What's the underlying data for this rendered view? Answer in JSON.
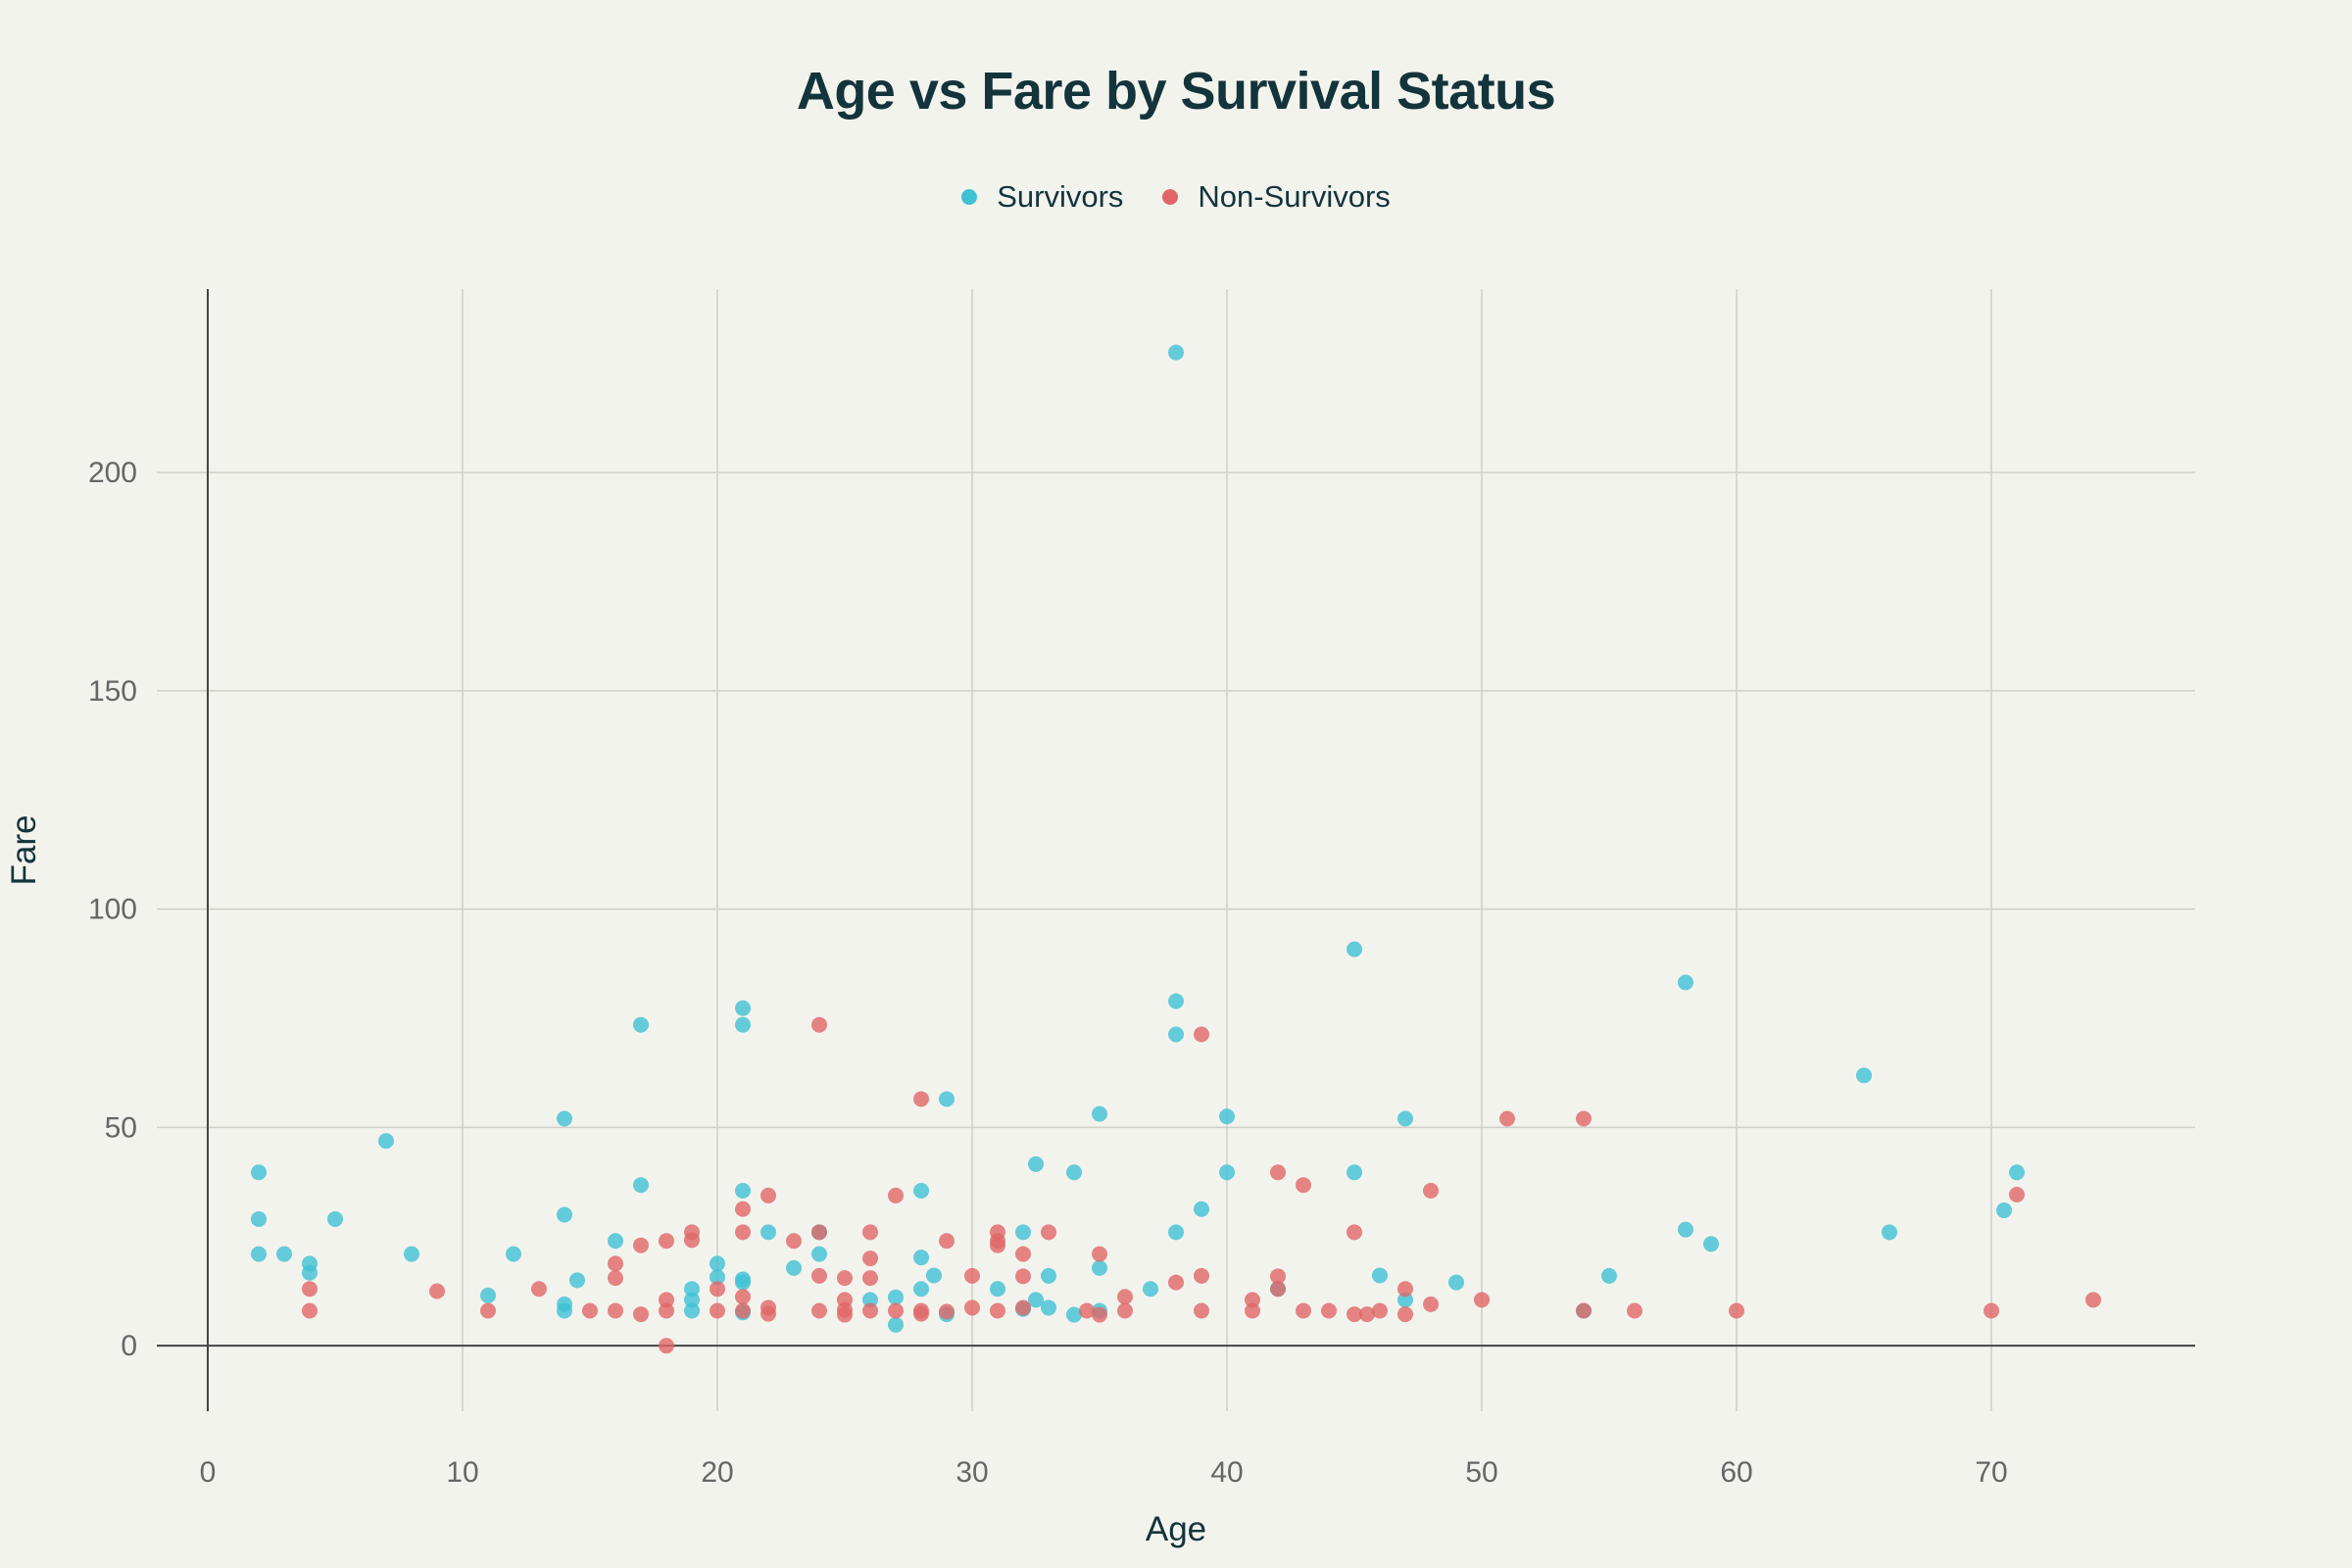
{
  "chart_data": {
    "type": "scatter",
    "title": "Age vs Fare by Survival Status",
    "xlabel": "Age",
    "ylabel": "Fare",
    "xlim": [
      -2,
      78
    ],
    "ylim": [
      -15,
      242
    ],
    "xticks": [
      0,
      10,
      20,
      30,
      40,
      50,
      60,
      70
    ],
    "yticks": [
      0,
      50,
      100,
      150,
      200
    ],
    "grid": true,
    "legend_position": "top-center",
    "series": [
      {
        "name": "Survivors",
        "color": "#3ec1d3",
        "points": [
          [
            2,
            39.7
          ],
          [
            2,
            29
          ],
          [
            2,
            21
          ],
          [
            3,
            21
          ],
          [
            4,
            18.8
          ],
          [
            4,
            16.7
          ],
          [
            5,
            29
          ],
          [
            7,
            46.9
          ],
          [
            8,
            21
          ],
          [
            11,
            11.5
          ],
          [
            12,
            21
          ],
          [
            14,
            52
          ],
          [
            14,
            30
          ],
          [
            14,
            9.5
          ],
          [
            14,
            8
          ],
          [
            14.5,
            15
          ],
          [
            16,
            24
          ],
          [
            17,
            73.5
          ],
          [
            17,
            36.8
          ],
          [
            19,
            13
          ],
          [
            19,
            10.5
          ],
          [
            19,
            8
          ],
          [
            20,
            18.8
          ],
          [
            20,
            15.7
          ],
          [
            21,
            77.3
          ],
          [
            21,
            73.5
          ],
          [
            21,
            35.5
          ],
          [
            21,
            15.2
          ],
          [
            21,
            14.5
          ],
          [
            21,
            7.6
          ],
          [
            22,
            26
          ],
          [
            23,
            17.8
          ],
          [
            24,
            21
          ],
          [
            24,
            26
          ],
          [
            26,
            10.5
          ],
          [
            27,
            11.1
          ],
          [
            27,
            4.8
          ],
          [
            28,
            35.5
          ],
          [
            28,
            20.2
          ],
          [
            28,
            13
          ],
          [
            28.5,
            16.1
          ],
          [
            29,
            56.5
          ],
          [
            29,
            7.2
          ],
          [
            31,
            13
          ],
          [
            32,
            26
          ],
          [
            32,
            8.4
          ],
          [
            32.5,
            41.6
          ],
          [
            32.5,
            10.5
          ],
          [
            33,
            16
          ],
          [
            33,
            8.7
          ],
          [
            34,
            39.7
          ],
          [
            34,
            7.1
          ],
          [
            35,
            53.1
          ],
          [
            35,
            17.8
          ],
          [
            35,
            8
          ],
          [
            37,
            13
          ],
          [
            38,
            227.5
          ],
          [
            38,
            78.9
          ],
          [
            38,
            71.3
          ],
          [
            38,
            26
          ],
          [
            39,
            31.3
          ],
          [
            40,
            52.5
          ],
          [
            40,
            39.7
          ],
          [
            42,
            13
          ],
          [
            45,
            90.8
          ],
          [
            45,
            39.7
          ],
          [
            46,
            16.1
          ],
          [
            47,
            52
          ],
          [
            47,
            10.5
          ],
          [
            49,
            14.5
          ],
          [
            54,
            8
          ],
          [
            55,
            16
          ],
          [
            58,
            83.2
          ],
          [
            58,
            26.6
          ],
          [
            59,
            23.3
          ],
          [
            65,
            61.9
          ],
          [
            66,
            26
          ],
          [
            70.5,
            31
          ],
          [
            71,
            39.7
          ]
        ]
      },
      {
        "name": "Non-Survivors",
        "color": "#e06666",
        "points": [
          [
            4,
            13
          ],
          [
            4,
            8
          ],
          [
            9,
            12.5
          ],
          [
            11,
            8
          ],
          [
            13,
            13
          ],
          [
            15,
            8
          ],
          [
            16,
            18.8
          ],
          [
            16,
            15.5
          ],
          [
            16,
            8
          ],
          [
            17,
            23
          ],
          [
            17,
            7.2
          ],
          [
            18,
            24
          ],
          [
            18,
            10.5
          ],
          [
            18,
            8
          ],
          [
            18,
            0
          ],
          [
            19,
            26
          ],
          [
            19,
            24.2
          ],
          [
            20,
            13
          ],
          [
            20,
            8
          ],
          [
            21,
            31.3
          ],
          [
            21,
            26
          ],
          [
            21,
            11.2
          ],
          [
            21,
            8
          ],
          [
            22,
            34.4
          ],
          [
            22,
            8.7
          ],
          [
            22,
            7.3
          ],
          [
            23,
            24
          ],
          [
            24,
            73.5
          ],
          [
            24,
            26
          ],
          [
            24,
            16
          ],
          [
            24,
            8
          ],
          [
            25,
            15.5
          ],
          [
            25,
            10.5
          ],
          [
            25,
            8.2
          ],
          [
            25,
            7.1
          ],
          [
            26,
            26
          ],
          [
            26,
            20
          ],
          [
            26,
            15.5
          ],
          [
            26,
            8
          ],
          [
            27,
            34.4
          ],
          [
            27,
            8
          ],
          [
            28,
            56.5
          ],
          [
            28,
            8
          ],
          [
            28,
            7.3
          ],
          [
            29,
            24
          ],
          [
            29,
            7.8
          ],
          [
            30,
            16
          ],
          [
            30,
            8.7
          ],
          [
            31,
            26
          ],
          [
            31,
            24
          ],
          [
            31,
            23
          ],
          [
            31,
            8
          ],
          [
            32,
            21
          ],
          [
            32,
            15.9
          ],
          [
            32,
            8.7
          ],
          [
            33,
            26
          ],
          [
            34.5,
            8
          ],
          [
            35,
            21
          ],
          [
            35,
            7.1
          ],
          [
            36,
            11.2
          ],
          [
            36,
            8
          ],
          [
            38,
            14.5
          ],
          [
            39,
            71.3
          ],
          [
            39,
            16
          ],
          [
            39,
            8
          ],
          [
            41,
            10.5
          ],
          [
            41,
            8
          ],
          [
            42,
            39.7
          ],
          [
            42,
            15.9
          ],
          [
            42,
            13
          ],
          [
            43,
            36.8
          ],
          [
            43,
            8
          ],
          [
            44,
            8
          ],
          [
            45,
            26
          ],
          [
            45,
            7.2
          ],
          [
            45.5,
            7.2
          ],
          [
            46,
            8
          ],
          [
            47,
            13
          ],
          [
            47,
            7.2
          ],
          [
            48,
            35.5
          ],
          [
            48,
            9.5
          ],
          [
            50,
            10.5
          ],
          [
            51,
            52
          ],
          [
            54,
            52
          ],
          [
            54,
            8
          ],
          [
            56,
            8
          ],
          [
            60,
            8
          ],
          [
            70,
            8
          ],
          [
            71,
            34.6
          ],
          [
            74,
            10.5
          ]
        ]
      }
    ]
  }
}
